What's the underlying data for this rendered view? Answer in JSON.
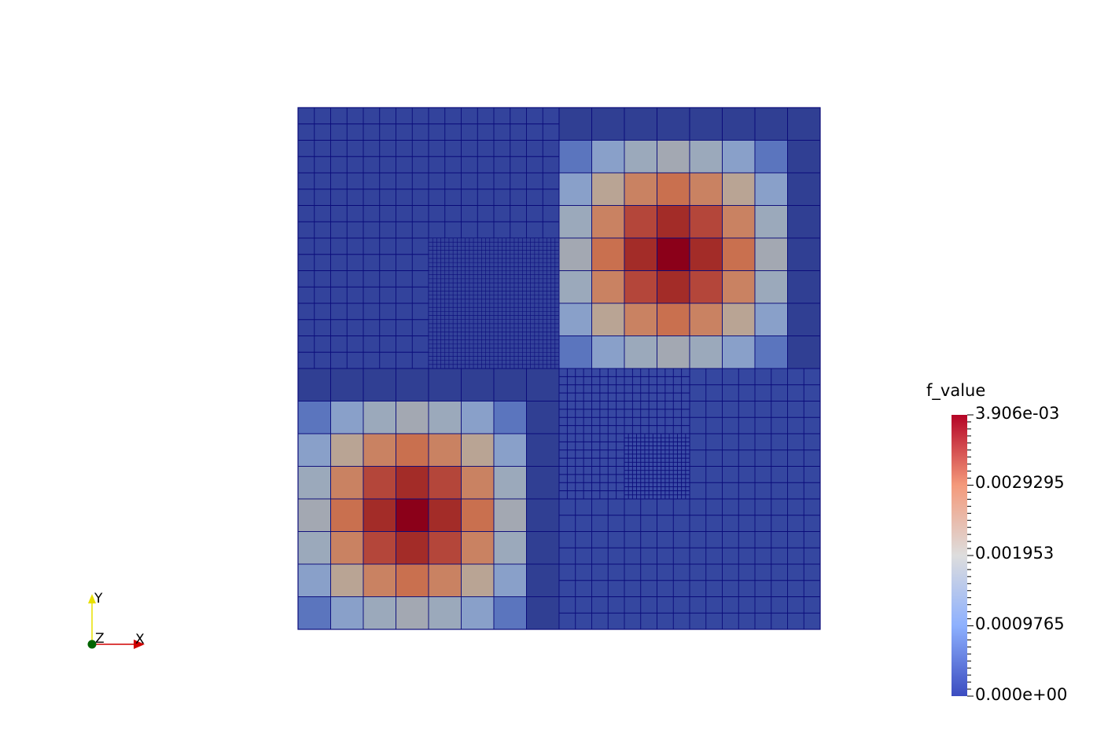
{
  "colorbar": {
    "title": "f_value",
    "labels": [
      "3.906e-03",
      "0.0029295",
      "0.001953",
      "0.0009765",
      "0.000e+00"
    ]
  },
  "axes": {
    "x": "X",
    "y": "Y",
    "z": "Z"
  }
}
